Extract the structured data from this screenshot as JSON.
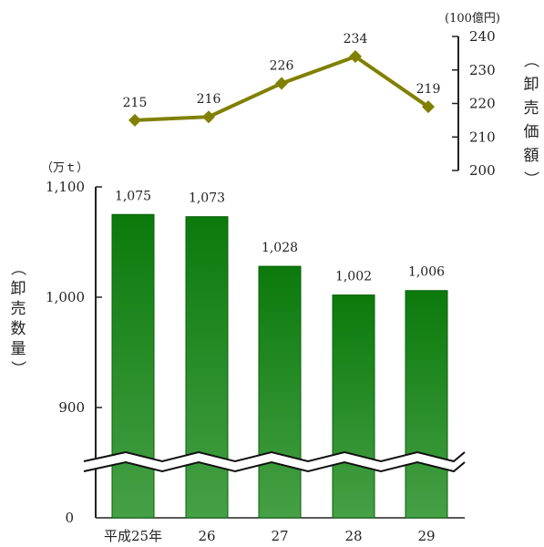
{
  "chart_data": [
    {
      "type": "line",
      "categories": [
        "平成25年",
        "26",
        "27",
        "28",
        "29"
      ],
      "values": [
        215,
        216,
        226,
        234,
        219
      ],
      "data_labels": [
        "215",
        "216",
        "226",
        "234",
        "219"
      ],
      "unit": "(100億円)",
      "ylabel": "（卸売価額）",
      "ylim": [
        200,
        240
      ],
      "yticks": [
        "200",
        "210",
        "220",
        "230",
        "240"
      ],
      "axis_side": "right",
      "color": "#808000"
    },
    {
      "type": "bar",
      "categories": [
        "平成25年",
        "26",
        "27",
        "28",
        "29"
      ],
      "values": [
        1075,
        1073,
        1028,
        1002,
        1006
      ],
      "data_labels": [
        "1,075",
        "1,073",
        "1,028",
        "1,002",
        "1,006"
      ],
      "unit": "（万ｔ）",
      "ylabel": "（卸売数量）",
      "ylim": [
        850,
        1100
      ],
      "yticks": [
        {
          "value": 1100,
          "label": "1,100"
        },
        {
          "value": 1000,
          "label": "1,000"
        },
        {
          "value": 900,
          "label": "900"
        }
      ],
      "baseline_label": "0",
      "axis_break": true,
      "color_top": "#0b7a0b",
      "color_bottom": "#46a046"
    }
  ]
}
